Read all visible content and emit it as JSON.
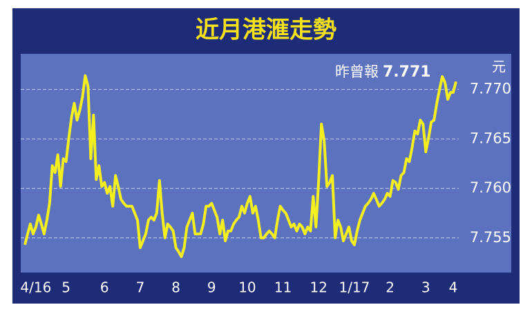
{
  "chart_data": {
    "type": "line",
    "title": "近月港滙走勢",
    "y_unit": "元",
    "annotation": {
      "label": "昨曾報",
      "value": 7.771
    },
    "color": "#f4ef1f",
    "grid": true,
    "ylim": [
      7.7515,
      7.7736
    ],
    "yticks": [
      {
        "value": 7.77,
        "label": "7.770"
      },
      7.765,
      {
        "value": 7.76,
        "label": "7.760"
      },
      7.755
    ],
    "categories": [
      null,
      null,
      null,
      null,
      "4/16",
      null,
      null,
      null,
      null,
      null,
      null,
      null,
      null,
      null,
      null,
      "5",
      null,
      null,
      null,
      null,
      null,
      null,
      null,
      null,
      null,
      null,
      null,
      null,
      null,
      "6",
      null,
      null,
      null,
      null,
      null,
      null,
      null,
      null,
      null,
      null,
      null,
      null,
      "7",
      null,
      null,
      null,
      null,
      null,
      null,
      null,
      null,
      null,
      null,
      null,
      null,
      "8",
      null,
      null,
      null,
      null,
      null,
      null,
      null,
      null,
      null,
      null,
      null,
      null,
      "9",
      null,
      null,
      null,
      null,
      null,
      null,
      null,
      null,
      null,
      null,
      null,
      null,
      "10",
      null,
      null,
      null,
      null,
      null,
      null,
      null,
      null,
      null,
      null,
      null,
      null,
      "11",
      null,
      null,
      null,
      null,
      null,
      null,
      null,
      null,
      null,
      null,
      null,
      null,
      "12",
      null,
      null,
      null,
      null,
      null,
      null,
      null,
      null,
      null,
      null,
      null,
      null,
      "1/17",
      null,
      null,
      null,
      null,
      null,
      null,
      null,
      null,
      null,
      null,
      null,
      null,
      "2",
      null,
      null,
      null,
      null,
      null,
      null,
      null,
      null,
      null,
      null,
      null,
      null,
      "3",
      null,
      null,
      null,
      null,
      null,
      null,
      null,
      null,
      null,
      "4",
      null
    ],
    "values": [
      7.7543,
      7.7554,
      7.7564,
      7.7554,
      7.7561,
      7.7573,
      7.7564,
      7.7554,
      7.7568,
      7.7585,
      7.7623,
      7.7616,
      7.7634,
      7.7602,
      7.763,
      7.7627,
      7.7651,
      7.7672,
      7.7686,
      7.7669,
      7.7679,
      7.7693,
      7.7714,
      7.7703,
      7.763,
      7.7674,
      7.7609,
      7.7623,
      7.7602,
      7.7606,
      7.7595,
      7.7602,
      7.7582,
      7.7613,
      7.7602,
      7.7589,
      7.7585,
      7.7582,
      7.7582,
      7.7582,
      7.7575,
      7.7568,
      7.754,
      7.7547,
      7.7554,
      7.7568,
      7.7571,
      7.7568,
      7.7575,
      7.7608,
      7.7575,
      7.755,
      7.7564,
      7.7561,
      7.7557,
      7.754,
      7.7536,
      7.7531,
      7.754,
      7.7561,
      7.7568,
      7.7575,
      7.7554,
      7.7554,
      7.7554,
      7.7564,
      7.7582,
      7.7582,
      7.7585,
      7.7578,
      7.7571,
      7.7554,
      7.7568,
      7.7547,
      7.7557,
      7.7557,
      7.7564,
      7.7568,
      7.7571,
      7.7582,
      7.7575,
      7.7585,
      7.7592,
      7.7575,
      7.7582,
      7.7568,
      7.755,
      7.755,
      7.7554,
      7.7557,
      7.7554,
      7.755,
      7.7568,
      7.7582,
      7.7578,
      7.7575,
      7.7568,
      7.7561,
      7.7564,
      7.7557,
      7.7564,
      7.7561,
      7.7554,
      7.7561,
      7.7557,
      7.7592,
      7.7561,
      7.7609,
      7.7665,
      7.7648,
      7.7602,
      7.7606,
      7.7613,
      7.755,
      7.7568,
      7.7561,
      7.7547,
      7.7554,
      7.7561,
      7.7547,
      7.7543,
      7.7557,
      7.7568,
      7.7575,
      7.7582,
      7.7585,
      7.7589,
      7.7595,
      7.7589,
      7.7582,
      7.7585,
      7.7589,
      7.7595,
      7.7592,
      7.7608,
      7.7606,
      7.7599,
      7.7613,
      7.7616,
      7.763,
      7.7627,
      7.7641,
      7.7658,
      7.7655,
      7.7669,
      7.7665,
      7.7637,
      7.7651,
      7.7667,
      7.7669,
      7.7686,
      7.77,
      7.7713,
      7.7707,
      7.769,
      7.7697,
      7.7697,
      7.7708
    ]
  }
}
